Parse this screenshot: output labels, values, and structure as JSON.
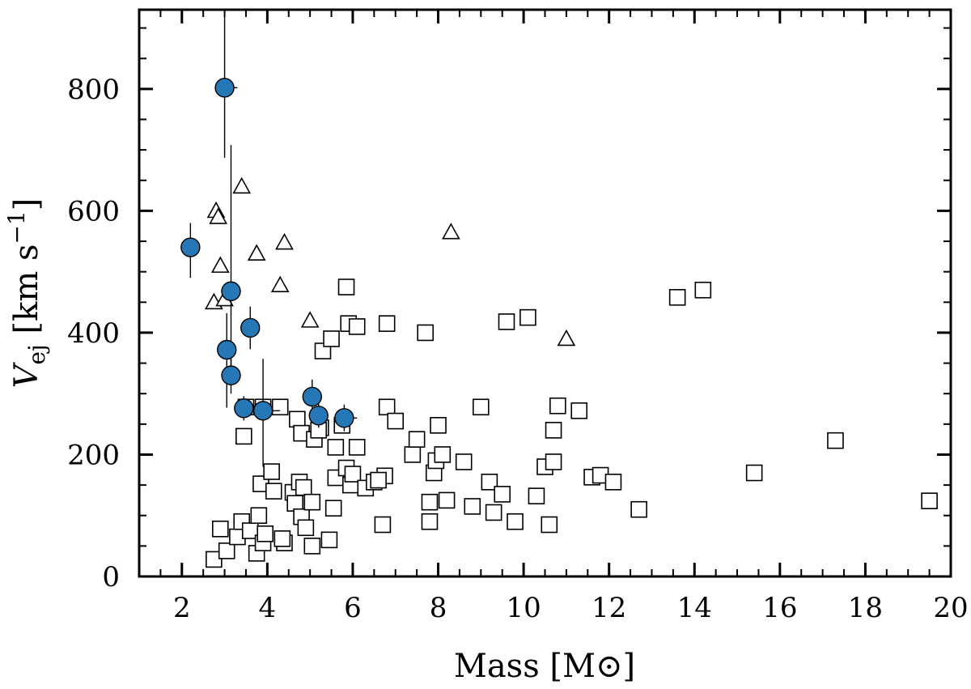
{
  "chart_data": {
    "type": "scatter",
    "xlabel": "Mass [M⊙]",
    "ylabel": {
      "base": "V",
      "subscript": "ej",
      "units_prefix": " [km s",
      "units_exponent": "−1",
      "units_suffix": "]"
    },
    "xlim": [
      1,
      20
    ],
    "ylim": [
      0,
      930
    ],
    "x_ticks": [
      2,
      4,
      6,
      8,
      10,
      12,
      14,
      16,
      18,
      20
    ],
    "x_tick_labels": [
      "2",
      "4",
      "6",
      "8",
      "10",
      "12",
      "14",
      "16",
      "18",
      "20"
    ],
    "y_ticks": [
      0,
      200,
      400,
      600,
      800
    ],
    "y_tick_labels": [
      "0",
      "200",
      "400",
      "600",
      "800"
    ],
    "series": [
      {
        "name": "open squares",
        "marker": "square",
        "points": [
          [
            2.75,
            28
          ],
          [
            2.9,
            78
          ],
          [
            3.05,
            42
          ],
          [
            3.3,
            65
          ],
          [
            3.4,
            90
          ],
          [
            3.6,
            75
          ],
          [
            3.75,
            38
          ],
          [
            3.8,
            100
          ],
          [
            3.85,
            152
          ],
          [
            3.9,
            55
          ],
          [
            3.95,
            70
          ],
          [
            4.1,
            172
          ],
          [
            4.15,
            140
          ],
          [
            4.4,
            55
          ],
          [
            4.35,
            62
          ],
          [
            4.6,
            138
          ],
          [
            4.65,
            120
          ],
          [
            4.75,
            155
          ],
          [
            4.8,
            98
          ],
          [
            4.85,
            146
          ],
          [
            4.9,
            80
          ],
          [
            5.05,
            122
          ],
          [
            5.05,
            50
          ],
          [
            5.25,
            244
          ],
          [
            5.3,
            370
          ],
          [
            5.45,
            60
          ],
          [
            5.5,
            390
          ],
          [
            5.55,
            112
          ],
          [
            5.6,
            162
          ],
          [
            5.6,
            212
          ],
          [
            5.75,
            248
          ],
          [
            5.85,
            178
          ],
          [
            5.85,
            475
          ],
          [
            5.9,
            415
          ],
          [
            5.95,
            150
          ],
          [
            6.0,
            168
          ],
          [
            6.1,
            410
          ],
          [
            6.1,
            212
          ],
          [
            6.3,
            145
          ],
          [
            6.5,
            155
          ],
          [
            6.7,
            85
          ],
          [
            6.75,
            165
          ],
          [
            6.8,
            278
          ],
          [
            6.8,
            415
          ],
          [
            7.0,
            255
          ],
          [
            7.4,
            200
          ],
          [
            7.5,
            225
          ],
          [
            7.7,
            400
          ],
          [
            7.8,
            90
          ],
          [
            7.8,
            122
          ],
          [
            7.9,
            170
          ],
          [
            7.95,
            190
          ],
          [
            8.0,
            248
          ],
          [
            8.1,
            200
          ],
          [
            8.2,
            125
          ],
          [
            8.6,
            188
          ],
          [
            8.8,
            115
          ],
          [
            9.0,
            278
          ],
          [
            9.2,
            155
          ],
          [
            9.3,
            105
          ],
          [
            9.5,
            135
          ],
          [
            9.6,
            418
          ],
          [
            9.8,
            90
          ],
          [
            10.1,
            425
          ],
          [
            10.3,
            132
          ],
          [
            10.5,
            180
          ],
          [
            10.6,
            85
          ],
          [
            10.7,
            188
          ],
          [
            10.7,
            240
          ],
          [
            10.8,
            280
          ],
          [
            11.3,
            272
          ],
          [
            11.6,
            163
          ],
          [
            11.8,
            166
          ],
          [
            12.1,
            155
          ],
          [
            12.7,
            110
          ],
          [
            13.6,
            458
          ],
          [
            14.2,
            470
          ],
          [
            15.4,
            170
          ],
          [
            17.3,
            223
          ],
          [
            19.5,
            124
          ],
          [
            3.45,
            230
          ],
          [
            4.3,
            278
          ],
          [
            4.7,
            258
          ],
          [
            4.8,
            235
          ],
          [
            5.1,
            225
          ],
          [
            5.2,
            240
          ],
          [
            3.5,
            278
          ],
          [
            3.9,
            278
          ],
          [
            6.6,
            158
          ]
        ]
      },
      {
        "name": "open triangles",
        "marker": "triangle",
        "points": [
          [
            2.75,
            450
          ],
          [
            2.8,
            600
          ],
          [
            2.85,
            590
          ],
          [
            2.9,
            510
          ],
          [
            3.0,
            455
          ],
          [
            3.4,
            640
          ],
          [
            3.75,
            530
          ],
          [
            4.3,
            478
          ],
          [
            4.4,
            548
          ],
          [
            5.0,
            420
          ],
          [
            8.3,
            565
          ],
          [
            11.0,
            390
          ]
        ]
      },
      {
        "name": "filled circles",
        "marker": "circle",
        "color": "#2677b5",
        "points": [
          {
            "x": 2.2,
            "y": 540,
            "yerr": [
              50,
              40
            ],
            "xerr": [
              0.1,
              0.1
            ]
          },
          {
            "x": 3.0,
            "y": 802,
            "yerr": [
              115,
              130
            ],
            "xerr": [
              0.1,
              0.3
            ]
          },
          {
            "x": 3.15,
            "y": 468,
            "yerr": [
              155,
              240
            ],
            "xerr": [
              0.05,
              0.15
            ]
          },
          {
            "x": 3.05,
            "y": 372,
            "yerr": [
              95,
              60
            ],
            "xerr": [
              0.05,
              0.1
            ]
          },
          {
            "x": 3.6,
            "y": 408,
            "yerr": [
              35,
              35
            ],
            "xerr": [
              0.05,
              0.15
            ]
          },
          {
            "x": 3.15,
            "y": 330,
            "yerr": [
              30,
              30
            ],
            "xerr": [
              0.05,
              0.1
            ]
          },
          {
            "x": 3.45,
            "y": 276,
            "yerr": [
              20,
              20
            ],
            "xerr": [
              0.05,
              0.1
            ]
          },
          {
            "x": 3.9,
            "y": 272,
            "yerr": [
              92,
              85
            ],
            "xerr": [
              0.1,
              0.4
            ]
          },
          {
            "x": 5.05,
            "y": 295,
            "yerr": [
              28,
              28
            ],
            "xerr": [
              0.1,
              0.1
            ]
          },
          {
            "x": 5.2,
            "y": 264,
            "yerr": [
              20,
              20
            ],
            "xerr": [
              0.1,
              0.1
            ]
          },
          {
            "x": 5.8,
            "y": 260,
            "yerr": [
              22,
              22
            ],
            "xerr": [
              0.1,
              0.3
            ]
          }
        ]
      }
    ]
  }
}
